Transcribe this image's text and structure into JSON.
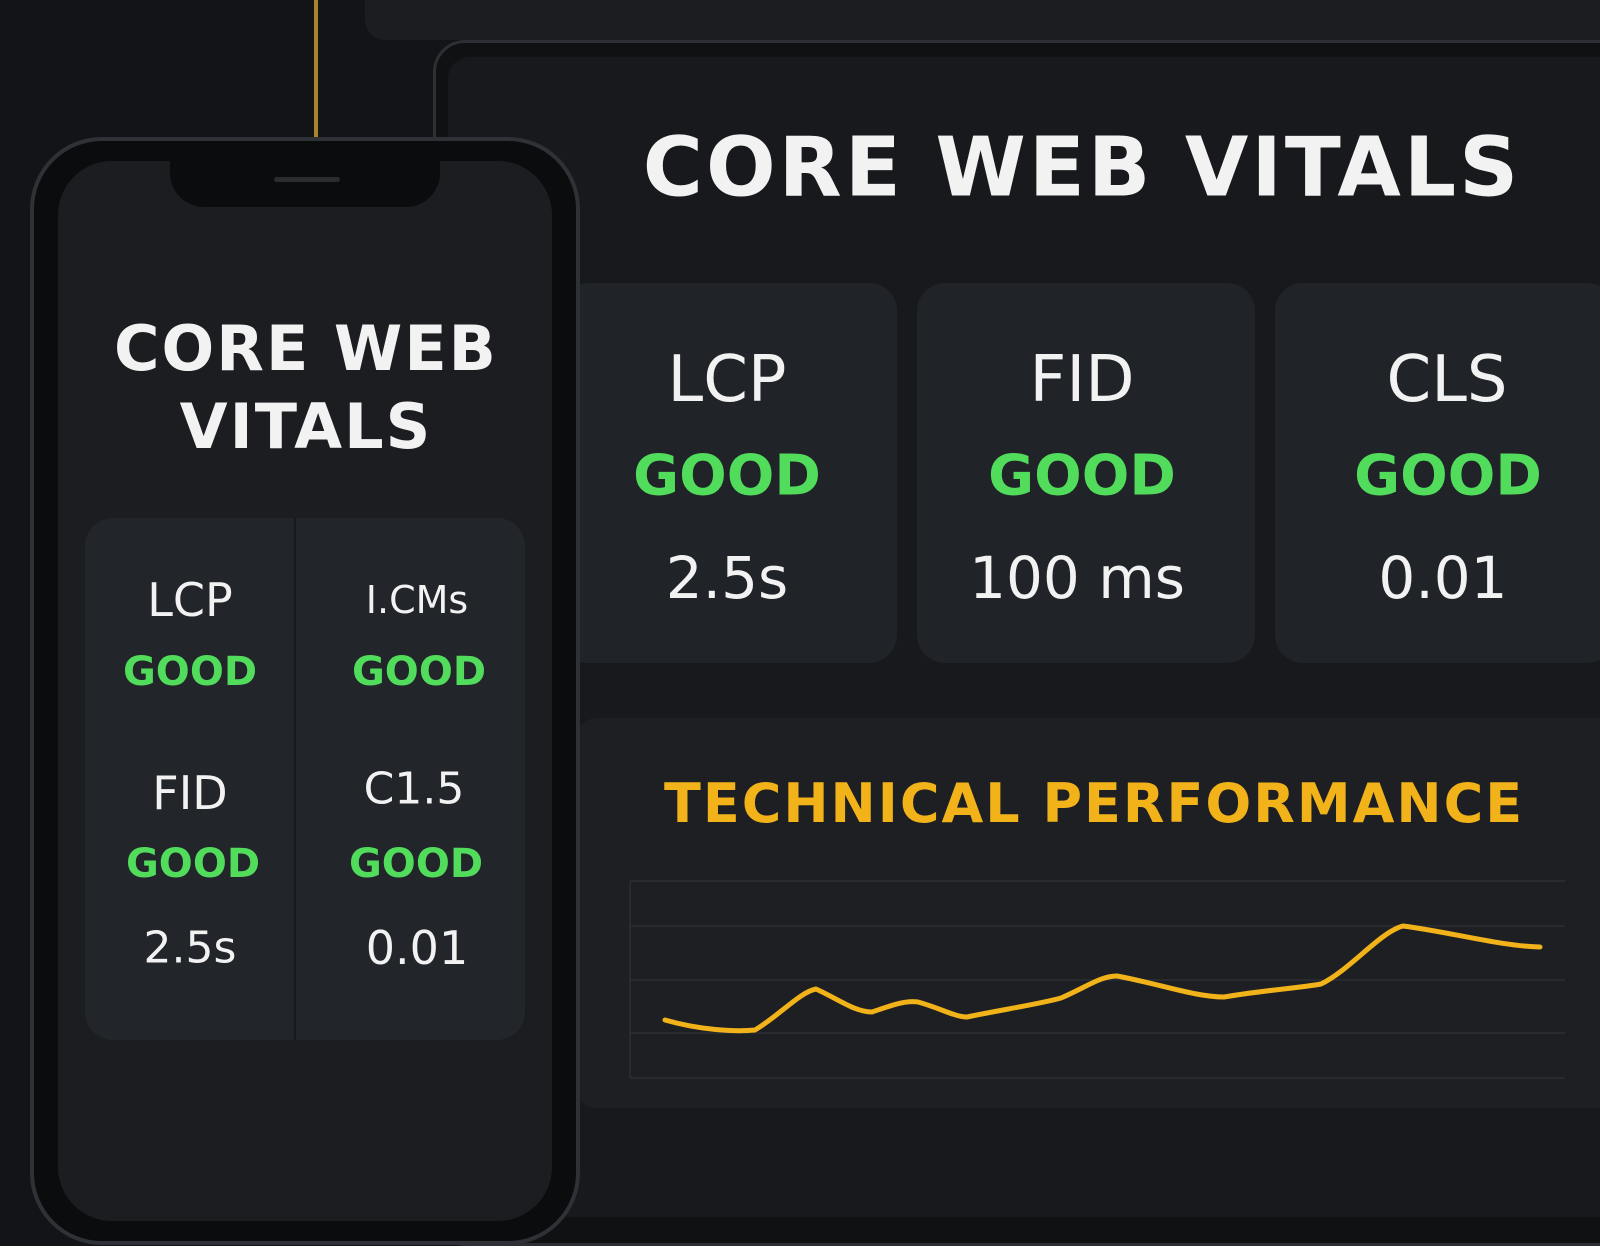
{
  "phone": {
    "title": "CORE WEB VITALS",
    "columns": [
      [
        "LCP",
        "GOOD",
        "FID",
        "GOOD",
        "2.5s"
      ],
      [
        "I.CMs",
        "GOOD",
        "C1.5",
        "GOOD",
        "0.01"
      ]
    ]
  },
  "tablet": {
    "title": "CORE WEB VITALS",
    "metrics": [
      {
        "name": "LCP",
        "status": "GOOD",
        "value": "2.5s"
      },
      {
        "name": "FID",
        "status": "GOOD",
        "value": "100 ms"
      },
      {
        "name": "CLS",
        "status": "GOOD",
        "value": "0.01"
      }
    ],
    "section_title": "TECHNICAL PERFORMANCE"
  }
}
